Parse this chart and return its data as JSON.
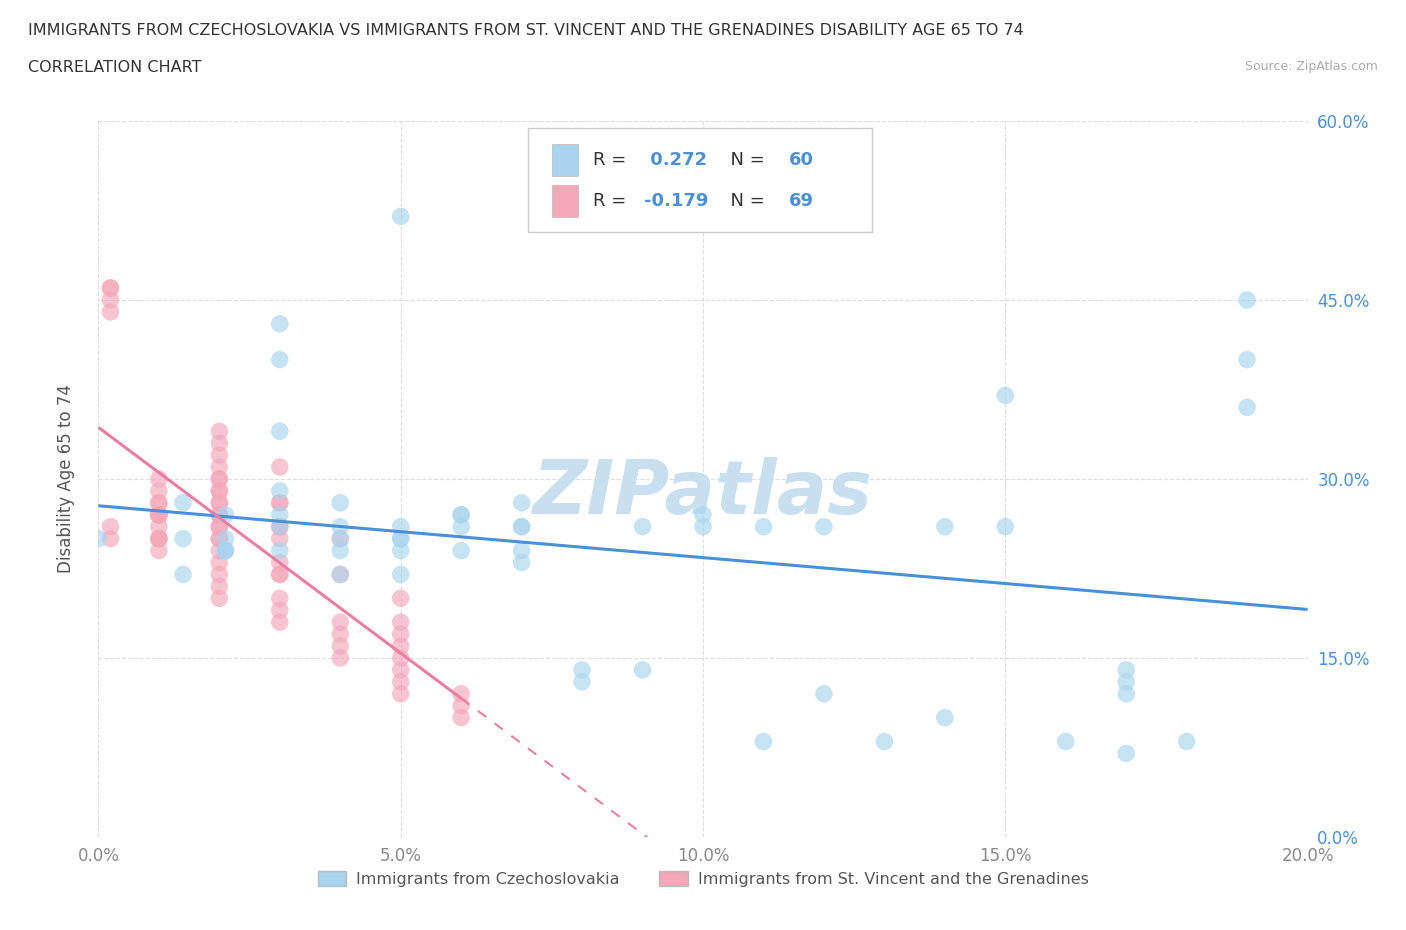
{
  "title_line1": "IMMIGRANTS FROM CZECHOSLOVAKIA VS IMMIGRANTS FROM ST. VINCENT AND THE GRENADINES DISABILITY AGE 65 TO 74",
  "title_line2": "CORRELATION CHART",
  "source_text": "Source: ZipAtlas.com",
  "ylabel": "Disability Age 65 to 74",
  "xlabel_czecho": "Immigrants from Czechoslovakia",
  "xlabel_stvincent": "Immigrants from St. Vincent and the Grenadines",
  "xlim": [
    0.0,
    0.2
  ],
  "ylim": [
    0.0,
    0.6
  ],
  "xticks": [
    0.0,
    0.05,
    0.1,
    0.15,
    0.2
  ],
  "yticks": [
    0.0,
    0.15,
    0.3,
    0.45,
    0.6
  ],
  "xtick_labels": [
    "0.0%",
    "5.0%",
    "10.0%",
    "15.0%",
    "20.0%"
  ],
  "ytick_labels": [
    "0.0%",
    "15.0%",
    "30.0%",
    "45.0%",
    "60.0%"
  ],
  "R_czecho": 0.272,
  "N_czecho": 60,
  "R_stvincent": -0.179,
  "N_stvincent": 69,
  "color_czecho": "#a8d4ee",
  "color_stvincent": "#f4a7b9",
  "line_color_czecho": "#4a90d9",
  "line_color_stvincent": "#e87fa0",
  "tick_color_right": "#4a90d9",
  "watermark_text": "ZIPatlas",
  "watermark_color": "#c8dff0",
  "title_fontsize": 11.5,
  "legend_fontsize": 13,
  "axis_label_fontsize": 12,
  "tick_fontsize": 12,
  "czecho_x": [
    0.0,
    0.014,
    0.014,
    0.014,
    0.021,
    0.021,
    0.021,
    0.021,
    0.021,
    0.03,
    0.03,
    0.03,
    0.03,
    0.03,
    0.03,
    0.03,
    0.04,
    0.04,
    0.04,
    0.04,
    0.04,
    0.05,
    0.05,
    0.05,
    0.05,
    0.05,
    0.05,
    0.06,
    0.06,
    0.06,
    0.06,
    0.07,
    0.07,
    0.07,
    0.07,
    0.07,
    0.08,
    0.08,
    0.09,
    0.09,
    0.1,
    0.1,
    0.11,
    0.11,
    0.12,
    0.12,
    0.13,
    0.14,
    0.14,
    0.15,
    0.15,
    0.16,
    0.17,
    0.17,
    0.17,
    0.17,
    0.18,
    0.19,
    0.19,
    0.19
  ],
  "czecho_y": [
    0.25,
    0.22,
    0.25,
    0.28,
    0.24,
    0.24,
    0.24,
    0.25,
    0.27,
    0.24,
    0.26,
    0.27,
    0.29,
    0.34,
    0.4,
    0.43,
    0.22,
    0.24,
    0.25,
    0.26,
    0.28,
    0.22,
    0.24,
    0.25,
    0.25,
    0.26,
    0.52,
    0.24,
    0.26,
    0.27,
    0.27,
    0.23,
    0.24,
    0.26,
    0.26,
    0.28,
    0.13,
    0.14,
    0.14,
    0.26,
    0.26,
    0.27,
    0.08,
    0.26,
    0.12,
    0.26,
    0.08,
    0.1,
    0.26,
    0.26,
    0.37,
    0.08,
    0.07,
    0.12,
    0.13,
    0.14,
    0.08,
    0.36,
    0.4,
    0.45
  ],
  "stvincent_x": [
    0.002,
    0.002,
    0.002,
    0.002,
    0.002,
    0.002,
    0.01,
    0.01,
    0.01,
    0.01,
    0.01,
    0.01,
    0.01,
    0.01,
    0.01,
    0.01,
    0.01,
    0.01,
    0.01,
    0.02,
    0.02,
    0.02,
    0.02,
    0.02,
    0.02,
    0.02,
    0.02,
    0.02,
    0.02,
    0.02,
    0.02,
    0.02,
    0.02,
    0.02,
    0.02,
    0.02,
    0.02,
    0.02,
    0.02,
    0.02,
    0.03,
    0.03,
    0.03,
    0.03,
    0.03,
    0.03,
    0.03,
    0.03,
    0.03,
    0.03,
    0.03,
    0.03,
    0.04,
    0.04,
    0.04,
    0.04,
    0.04,
    0.04,
    0.05,
    0.05,
    0.05,
    0.05,
    0.05,
    0.05,
    0.05,
    0.05,
    0.06,
    0.06,
    0.06
  ],
  "stvincent_y": [
    0.44,
    0.45,
    0.46,
    0.46,
    0.25,
    0.26,
    0.24,
    0.25,
    0.25,
    0.25,
    0.26,
    0.27,
    0.27,
    0.27,
    0.27,
    0.28,
    0.28,
    0.29,
    0.3,
    0.2,
    0.21,
    0.22,
    0.23,
    0.24,
    0.25,
    0.25,
    0.26,
    0.26,
    0.27,
    0.27,
    0.28,
    0.28,
    0.29,
    0.29,
    0.3,
    0.3,
    0.31,
    0.32,
    0.33,
    0.34,
    0.18,
    0.19,
    0.2,
    0.22,
    0.22,
    0.23,
    0.25,
    0.26,
    0.26,
    0.28,
    0.28,
    0.31,
    0.15,
    0.16,
    0.17,
    0.18,
    0.22,
    0.25,
    0.12,
    0.13,
    0.14,
    0.15,
    0.16,
    0.17,
    0.18,
    0.2,
    0.1,
    0.11,
    0.12
  ]
}
